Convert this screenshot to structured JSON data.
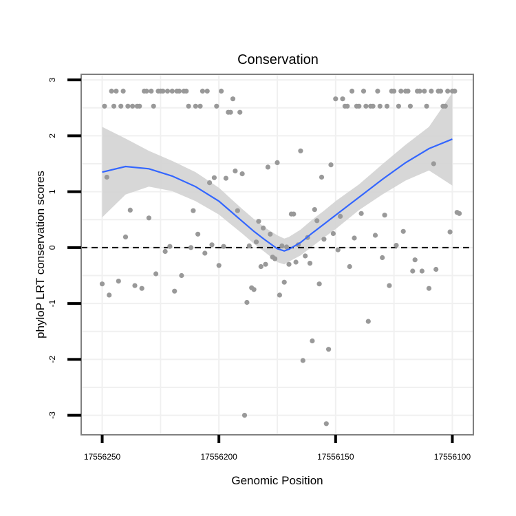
{
  "chart_data": {
    "type": "scatter",
    "title": "Conservation",
    "xlabel": "Genomic Position",
    "ylabel": "phyloP LRT conservation scores",
    "x_reversed": true,
    "xlim": [
      17556259,
      17556091
    ],
    "ylim": [
      -3.35,
      3.1
    ],
    "xticks": [
      17556250,
      17556200,
      17556150,
      17556100
    ],
    "xtick_labels": [
      "17556250",
      "17556200",
      "17556150",
      "17556100"
    ],
    "yticks": [
      -3,
      -2,
      -1,
      0,
      1,
      2,
      3
    ],
    "ytick_labels": [
      "-3",
      "-2",
      "-1",
      "0",
      "1",
      "2",
      "3"
    ],
    "reference_line": {
      "y": 0,
      "style": "dashed"
    },
    "grid": true,
    "colors": {
      "points": "#999999",
      "smooth_line": "#3366ff",
      "confidence_band": "#d3d3d3",
      "grid": "#f0f0f0",
      "panel_border": "#7f7f7f"
    },
    "series": [
      {
        "name": "phyloP scores",
        "points": [
          [
            17556250,
            -0.65
          ],
          [
            17556249,
            2.53
          ],
          [
            17556248,
            1.26
          ],
          [
            17556247,
            -0.85
          ],
          [
            17556246,
            2.8
          ],
          [
            17556245,
            2.53
          ],
          [
            17556244,
            2.8
          ],
          [
            17556243,
            -0.6
          ],
          [
            17556242,
            2.53
          ],
          [
            17556241,
            2.8
          ],
          [
            17556240,
            0.19
          ],
          [
            17556239,
            2.53
          ],
          [
            17556238,
            0.67
          ],
          [
            17556237,
            2.53
          ],
          [
            17556236,
            -0.68
          ],
          [
            17556235,
            2.53
          ],
          [
            17556234,
            2.53
          ],
          [
            17556233,
            -0.73
          ],
          [
            17556232,
            2.8
          ],
          [
            17556231,
            2.8
          ],
          [
            17556230,
            0.53
          ],
          [
            17556229,
            2.8
          ],
          [
            17556228,
            2.53
          ],
          [
            17556227,
            -0.47
          ],
          [
            17556226,
            2.8
          ],
          [
            17556225,
            2.8
          ],
          [
            17556224,
            2.8
          ],
          [
            17556223,
            -0.07
          ],
          [
            17556222,
            2.8
          ],
          [
            17556221,
            0.02
          ],
          [
            17556220,
            2.8
          ],
          [
            17556219,
            -0.78
          ],
          [
            17556218,
            2.8
          ],
          [
            17556217,
            2.8
          ],
          [
            17556216,
            -0.5
          ],
          [
            17556215,
            2.8
          ],
          [
            17556214,
            2.8
          ],
          [
            17556213,
            2.53
          ],
          [
            17556212,
            0.0
          ],
          [
            17556211,
            0.66
          ],
          [
            17556210,
            2.53
          ],
          [
            17556209,
            0.24
          ],
          [
            17556208,
            2.53
          ],
          [
            17556207,
            2.8
          ],
          [
            17556206,
            -0.1
          ],
          [
            17556205,
            2.8
          ],
          [
            17556204,
            1.16
          ],
          [
            17556203,
            0.05
          ],
          [
            17556202,
            1.25
          ],
          [
            17556201,
            2.53
          ],
          [
            17556200,
            -0.32
          ],
          [
            17556199,
            2.8
          ],
          [
            17556198,
            0.02
          ],
          [
            17556197,
            1.24
          ],
          [
            17556196,
            2.42
          ],
          [
            17556195,
            2.42
          ],
          [
            17556194,
            2.66
          ],
          [
            17556193,
            1.37
          ],
          [
            17556192,
            0.66
          ],
          [
            17556191,
            2.42
          ],
          [
            17556190,
            1.32
          ],
          [
            17556189,
            -3.0
          ],
          [
            17556188,
            -0.98
          ],
          [
            17556187,
            0.03
          ],
          [
            17556186,
            -0.72
          ],
          [
            17556185,
            -0.75
          ],
          [
            17556184,
            0.1
          ],
          [
            17556183,
            0.47
          ],
          [
            17556182,
            -0.34
          ],
          [
            17556181,
            0.35
          ],
          [
            17556180,
            -0.3
          ],
          [
            17556179,
            1.44
          ],
          [
            17556178,
            0.24
          ],
          [
            17556177,
            -0.17
          ],
          [
            17556176,
            -0.2
          ],
          [
            17556175,
            1.52
          ],
          [
            17556174,
            -0.85
          ],
          [
            17556173,
            0.03
          ],
          [
            17556172,
            -0.62
          ],
          [
            17556171,
            0.01
          ],
          [
            17556170,
            -0.3
          ],
          [
            17556169,
            0.6
          ],
          [
            17556168,
            0.6
          ],
          [
            17556167,
            -0.26
          ],
          [
            17556166,
            0.05
          ],
          [
            17556165,
            1.73
          ],
          [
            17556164,
            -2.02
          ],
          [
            17556163,
            -0.15
          ],
          [
            17556162,
            0.18
          ],
          [
            17556161,
            -0.28
          ],
          [
            17556160,
            -1.67
          ],
          [
            17556159,
            0.68
          ],
          [
            17556158,
            0.48
          ],
          [
            17556157,
            -0.65
          ],
          [
            17556156,
            1.26
          ],
          [
            17556155,
            0.15
          ],
          [
            17556154,
            -3.15
          ],
          [
            17556153,
            -1.82
          ],
          [
            17556152,
            1.48
          ],
          [
            17556151,
            0.25
          ],
          [
            17556150,
            2.66
          ],
          [
            17556149,
            -0.04
          ],
          [
            17556148,
            0.56
          ],
          [
            17556147,
            2.66
          ],
          [
            17556146,
            2.53
          ],
          [
            17556145,
            2.53
          ],
          [
            17556144,
            -0.34
          ],
          [
            17556143,
            2.8
          ],
          [
            17556142,
            0.17
          ],
          [
            17556141,
            2.53
          ],
          [
            17556140,
            2.53
          ],
          [
            17556139,
            0.61
          ],
          [
            17556138,
            2.8
          ],
          [
            17556137,
            2.53
          ],
          [
            17556136,
            -1.32
          ],
          [
            17556135,
            2.53
          ],
          [
            17556134,
            2.53
          ],
          [
            17556133,
            0.22
          ],
          [
            17556132,
            2.8
          ],
          [
            17556131,
            2.53
          ],
          [
            17556130,
            -0.18
          ],
          [
            17556129,
            0.58
          ],
          [
            17556128,
            2.53
          ],
          [
            17556127,
            -0.68
          ],
          [
            17556126,
            2.8
          ],
          [
            17556125,
            2.8
          ],
          [
            17556124,
            0.04
          ],
          [
            17556123,
            2.53
          ],
          [
            17556122,
            2.8
          ],
          [
            17556121,
            0.29
          ],
          [
            17556120,
            2.8
          ],
          [
            17556119,
            2.8
          ],
          [
            17556118,
            2.53
          ],
          [
            17556117,
            -0.42
          ],
          [
            17556116,
            -0.22
          ],
          [
            17556115,
            2.8
          ],
          [
            17556114,
            2.8
          ],
          [
            17556113,
            -0.42
          ],
          [
            17556112,
            2.8
          ],
          [
            17556111,
            2.53
          ],
          [
            17556110,
            -0.73
          ],
          [
            17556109,
            2.8
          ],
          [
            17556108,
            1.5
          ],
          [
            17556107,
            -0.39
          ],
          [
            17556106,
            2.8
          ],
          [
            17556105,
            2.8
          ],
          [
            17556104,
            2.53
          ],
          [
            17556103,
            2.53
          ],
          [
            17556102,
            2.8
          ],
          [
            17556101,
            0.28
          ],
          [
            17556100,
            2.8
          ],
          [
            17556099,
            2.8
          ],
          [
            17556098,
            0.63
          ],
          [
            17556097,
            0.61
          ]
        ]
      },
      {
        "name": "loess smooth",
        "x": [
          17556250,
          17556240,
          17556230,
          17556220,
          17556210,
          17556200,
          17556195,
          17556190,
          17556185,
          17556180,
          17556175,
          17556172,
          17556170,
          17556165,
          17556160,
          17556155,
          17556150,
          17556140,
          17556130,
          17556120,
          17556110,
          17556100
        ],
        "y": [
          1.35,
          1.45,
          1.41,
          1.28,
          1.09,
          0.83,
          0.65,
          0.47,
          0.29,
          0.13,
          -0.02,
          -0.06,
          -0.03,
          0.09,
          0.26,
          0.42,
          0.58,
          0.9,
          1.22,
          1.52,
          1.77,
          1.94
        ],
        "ci_upper": [
          2.16,
          1.95,
          1.73,
          1.55,
          1.35,
          1.07,
          0.88,
          0.69,
          0.51,
          0.35,
          0.22,
          0.16,
          0.19,
          0.32,
          0.5,
          0.66,
          0.83,
          1.13,
          1.49,
          1.84,
          2.16,
          2.77
        ],
        "ci_lower": [
          0.54,
          0.95,
          1.09,
          1.01,
          0.83,
          0.59,
          0.42,
          0.25,
          0.07,
          -0.09,
          -0.26,
          -0.3,
          -0.25,
          -0.14,
          0.02,
          0.18,
          0.33,
          0.67,
          0.95,
          1.2,
          1.38,
          1.11
        ]
      }
    ]
  }
}
